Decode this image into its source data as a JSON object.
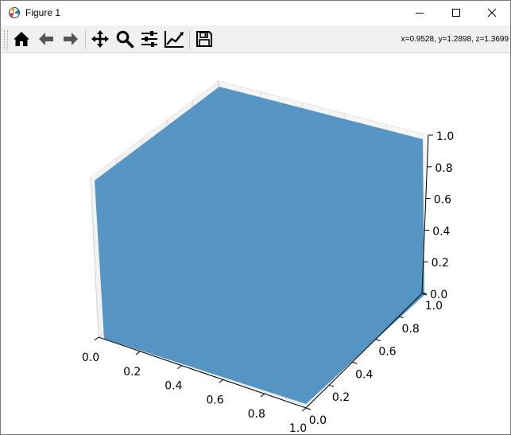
{
  "window": {
    "title": "Figure 1",
    "controls": [
      "minimize-icon",
      "maximize-icon",
      "close-icon"
    ]
  },
  "toolbar": {
    "buttons": [
      {
        "name": "home-button",
        "icon": "home-icon"
      },
      {
        "name": "back-button",
        "icon": "arrow-left-icon"
      },
      {
        "name": "forward-button",
        "icon": "arrow-right-icon"
      },
      {
        "name": "pan-button",
        "icon": "move-icon"
      },
      {
        "name": "zoom-button",
        "icon": "magnifier-icon"
      },
      {
        "name": "subplots-button",
        "icon": "sliders-icon"
      },
      {
        "name": "edit-axes-button",
        "icon": "line-chart-icon"
      },
      {
        "name": "save-button",
        "icon": "floppy-disk-icon"
      }
    ],
    "coordinates": "x=0.9528, y=1.2898, z=1.3699"
  },
  "chart_data": {
    "type": "surface",
    "surface_color": "#4e8fc2",
    "x_ticks": [
      "0.0",
      "0.2",
      "0.4",
      "0.6",
      "0.8",
      "1.0"
    ],
    "y_ticks": [
      "0.0",
      "0.2",
      "0.4",
      "0.6",
      "0.8",
      "1.0"
    ],
    "z_ticks": [
      "0.0",
      "0.2",
      "0.4",
      "0.6",
      "0.8",
      "1.0"
    ],
    "xlim": [
      0,
      1
    ],
    "ylim": [
      0,
      1
    ],
    "zlim": [
      0,
      1
    ],
    "grid": true
  }
}
